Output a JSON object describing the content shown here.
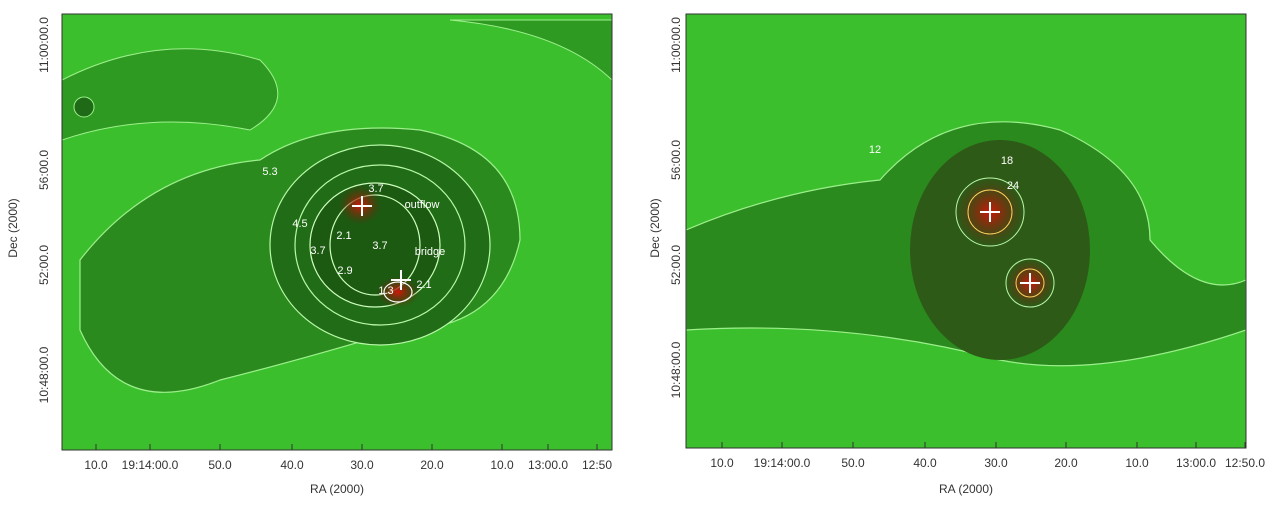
{
  "panels": [
    {
      "xlabel": "RA (2000)",
      "ylabel": "Dec (2000)",
      "xticks": [
        "10.0",
        "19:14:00.0",
        "50.0",
        "40.0",
        "30.0",
        "20.0",
        "10.0",
        "13:00.0",
        "12:50"
      ],
      "yticks": [
        "11:00:00.0",
        "56:00.0",
        "52:00.0",
        "10:48:00.0"
      ],
      "annotations": [
        "5.3",
        "3.7",
        "outflow",
        "4.5",
        "2.1",
        "3.7",
        "bridge",
        "3.7",
        "2.9",
        "1.3",
        "2.1"
      ]
    },
    {
      "xlabel": "RA (2000)",
      "ylabel": "Dec (2000)",
      "xticks": [
        "10.0",
        "19:14:00.0",
        "50.0",
        "40.0",
        "30.0",
        "20.0",
        "10.0",
        "13:00.0",
        "12:50.0"
      ],
      "yticks": [
        "11:00:00.0",
        "56:00.0",
        "52:00.0",
        "10:48:00.0"
      ],
      "annotations": [
        "12",
        "18",
        "24"
      ]
    }
  ]
}
